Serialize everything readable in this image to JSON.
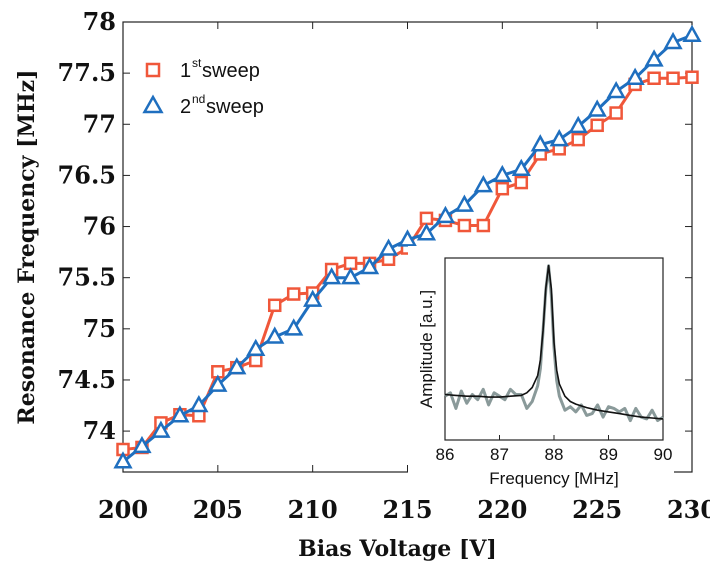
{
  "chart_data": [
    {
      "type": "line",
      "xlabel": "Bias Voltage [V]",
      "ylabel": "Resonance Frequency [MHz]",
      "xlim": [
        200,
        230
      ],
      "ylim": [
        73.6,
        78
      ],
      "xticks": [
        "200",
        "205",
        "210",
        "215",
        "220",
        "225",
        "230"
      ],
      "yticks": [
        "74",
        "74.5",
        "75",
        "75.5",
        "76",
        "76.5",
        "77",
        "77.5",
        "78"
      ],
      "grid": false,
      "legend_position": "top-left",
      "series": [
        {
          "name": "1st sweep",
          "name_main": "1",
          "name_sup": "st",
          "name_rest": " sweep",
          "marker": "square",
          "color": "#f0573a",
          "x": [
            200,
            201,
            202,
            203,
            204,
            205,
            206,
            207,
            208,
            209,
            210,
            211,
            212,
            213,
            214,
            215,
            216,
            217,
            218,
            219,
            220,
            221,
            222,
            223,
            224,
            225,
            226,
            227,
            228,
            229,
            230
          ],
          "y": [
            73.82,
            73.84,
            74.08,
            74.16,
            74.15,
            74.58,
            74.62,
            74.69,
            75.23,
            75.34,
            75.35,
            75.58,
            75.64,
            75.64,
            75.68,
            75.79,
            76.08,
            76.06,
            76.01,
            76.01,
            76.37,
            76.43,
            76.71,
            76.76,
            76.85,
            76.99,
            77.11,
            77.39,
            77.45,
            77.45,
            77.46
          ]
        },
        {
          "name": "2nd sweep",
          "name_main": "2",
          "name_sup": "nd",
          "name_rest": " sweep",
          "marker": "triangle",
          "color": "#1f6fbf",
          "x": [
            200,
            201,
            202,
            203,
            204,
            205,
            206,
            207,
            208,
            209,
            210,
            211,
            212,
            213,
            214,
            215,
            216,
            217,
            218,
            219,
            220,
            221,
            222,
            223,
            224,
            225,
            226,
            227,
            228,
            229,
            230
          ],
          "y": [
            73.7,
            73.85,
            74.0,
            74.15,
            74.25,
            74.45,
            74.62,
            74.8,
            74.92,
            75.0,
            75.28,
            75.5,
            75.5,
            75.6,
            75.78,
            75.87,
            75.93,
            76.1,
            76.21,
            76.4,
            76.5,
            76.56,
            76.8,
            76.85,
            76.98,
            77.14,
            77.32,
            77.45,
            77.63,
            77.8,
            77.87
          ]
        }
      ]
    },
    {
      "type": "line",
      "xlabel": "Frequency [MHz]",
      "ylabel": "Amplitude [a.u.]",
      "xlim": [
        86,
        90
      ],
      "ylim": [
        0,
        1
      ],
      "xticks": [
        "86",
        "87",
        "88",
        "89",
        "90"
      ],
      "yticks": [],
      "grid": false,
      "series": [
        {
          "name": "",
          "color": "#8a9a9a",
          "x": [
            86.0,
            86.1,
            86.2,
            86.3,
            86.4,
            86.5,
            86.6,
            86.7,
            86.8,
            86.9,
            87.0,
            87.1,
            87.2,
            87.3,
            87.4,
            87.5,
            87.6,
            87.7,
            87.75,
            87.8,
            87.85,
            87.9,
            87.95,
            88.0,
            88.05,
            88.1,
            88.2,
            88.3,
            88.4,
            88.5,
            88.6,
            88.7,
            88.8,
            88.9,
            89.0,
            89.1,
            89.2,
            89.3,
            89.4,
            89.5,
            89.6,
            89.7,
            89.8,
            89.9,
            90.0
          ],
          "y": [
            0.24,
            0.26,
            0.17,
            0.27,
            0.2,
            0.25,
            0.22,
            0.28,
            0.19,
            0.26,
            0.24,
            0.22,
            0.28,
            0.25,
            0.25,
            0.17,
            0.21,
            0.3,
            0.4,
            0.62,
            0.85,
            0.99,
            0.82,
            0.52,
            0.33,
            0.24,
            0.16,
            0.18,
            0.15,
            0.19,
            0.13,
            0.14,
            0.19,
            0.12,
            0.18,
            0.17,
            0.15,
            0.17,
            0.1,
            0.17,
            0.12,
            0.11,
            0.16,
            0.1,
            0.12
          ]
        },
        {
          "name": "",
          "color": "#111111",
          "x": [
            86.0,
            86.2,
            86.4,
            86.6,
            86.8,
            87.0,
            87.2,
            87.4,
            87.5,
            87.6,
            87.7,
            87.75,
            87.8,
            87.85,
            87.9,
            87.95,
            88.0,
            88.05,
            88.1,
            88.2,
            88.3,
            88.4,
            88.6,
            88.8,
            89.0,
            89.2,
            89.4,
            89.6,
            89.8,
            90.0
          ],
          "y": [
            0.25,
            0.245,
            0.24,
            0.24,
            0.235,
            0.235,
            0.24,
            0.245,
            0.26,
            0.29,
            0.36,
            0.45,
            0.62,
            0.86,
            0.99,
            0.86,
            0.55,
            0.39,
            0.31,
            0.24,
            0.21,
            0.195,
            0.175,
            0.16,
            0.15,
            0.14,
            0.13,
            0.12,
            0.115,
            0.11
          ]
        }
      ]
    }
  ]
}
